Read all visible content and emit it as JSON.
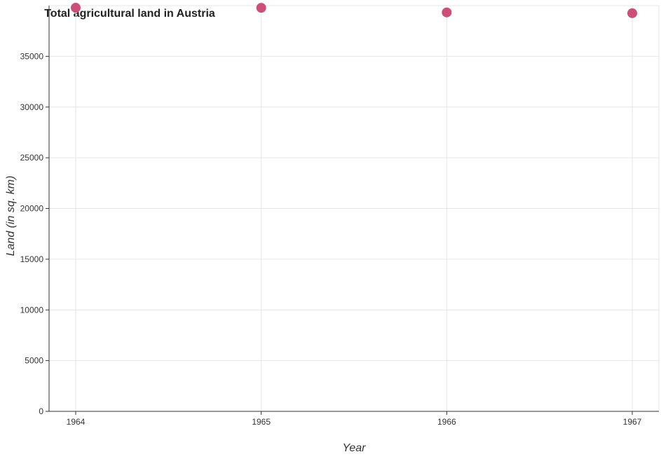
{
  "chart_data": {
    "type": "scatter",
    "title": "Total agricultural land in Austria",
    "xlabel": "Year",
    "ylabel": "Land (in sq. km)",
    "categories": [
      "1964",
      "1965",
      "1966",
      "1967"
    ],
    "series": [
      {
        "values": [
          39790,
          39780,
          39330,
          39250
        ]
      }
    ],
    "ylim": [
      0,
      40000
    ],
    "yticks": [
      0,
      5000,
      10000,
      15000,
      20000,
      25000,
      30000,
      35000
    ],
    "ytick_labels": [
      "0",
      "5000",
      "10000",
      "15000",
      "20000",
      "25000",
      "30000",
      "35000"
    ],
    "marker_color": "#cc4f7a",
    "grid": true,
    "legend": "none"
  }
}
